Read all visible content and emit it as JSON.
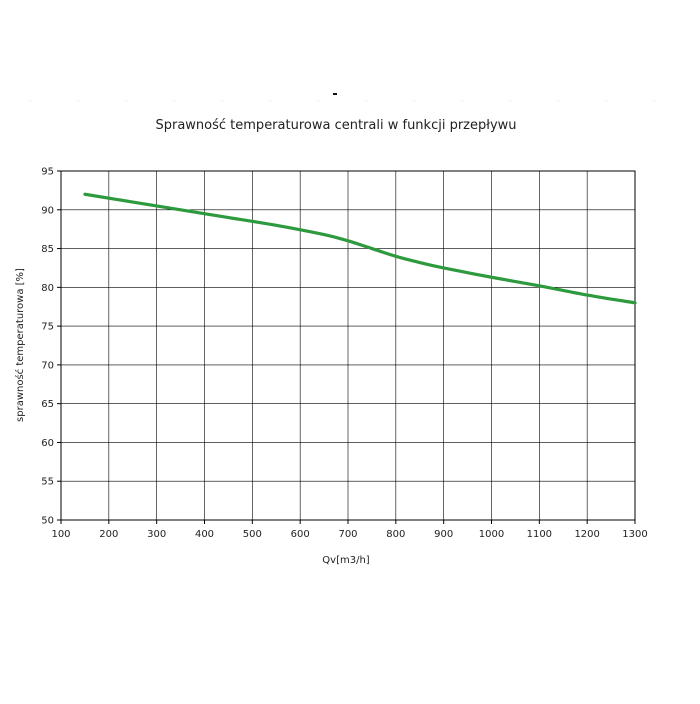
{
  "chart_data": {
    "type": "line",
    "title": "Sprawność temperaturowa centrali w funkcji przepływu",
    "xlabel": "Qv[m3/h]",
    "ylabel": "sprawność temperaturowa [%]",
    "xlim": [
      100,
      1300
    ],
    "ylim": [
      50,
      95
    ],
    "x_ticks": [
      100,
      200,
      300,
      400,
      500,
      600,
      700,
      800,
      900,
      1000,
      1100,
      1200,
      1300
    ],
    "y_ticks": [
      50,
      55,
      60,
      65,
      70,
      75,
      80,
      85,
      90,
      95
    ],
    "grid": true,
    "legend": "none",
    "series": [
      {
        "color": "#2e9a3e",
        "x": [
          150,
          250,
          350,
          450,
          550,
          650,
          700,
          750,
          800,
          850,
          900,
          1000,
          1100,
          1200,
          1300
        ],
        "y": [
          92.0,
          91.0,
          90.0,
          89.0,
          88.0,
          86.8,
          86.0,
          85.0,
          84.0,
          83.2,
          82.5,
          81.3,
          80.2,
          79.0,
          78.0
        ]
      }
    ]
  }
}
